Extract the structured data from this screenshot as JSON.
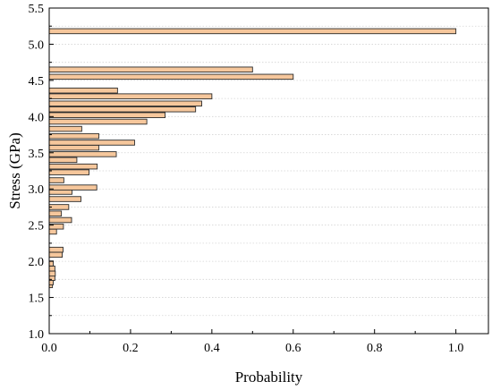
{
  "chart_data": {
    "type": "bar",
    "orientation": "horizontal",
    "xlabel": "Probability",
    "ylabel": "Stress (GPa)",
    "xlim": [
      0.0,
      1.08
    ],
    "ylim": [
      1.0,
      5.5
    ],
    "xticks": [
      "0.0",
      "0.2",
      "0.4",
      "0.6",
      "0.8",
      "1.0"
    ],
    "yticks": [
      "1.0",
      "1.5",
      "2.0",
      "2.5",
      "3.0",
      "3.5",
      "4.0",
      "4.5",
      "5.0",
      "5.5"
    ],
    "grid": "dotted horizontal",
    "bar_fill": "#f6c79c",
    "bar_edge": "#2b2b2b",
    "bins": [
      {
        "stress": 1.67,
        "probability": 0.008
      },
      {
        "stress": 1.71,
        "probability": 0.01
      },
      {
        "stress": 1.77,
        "probability": 0.014
      },
      {
        "stress": 1.83,
        "probability": 0.015
      },
      {
        "stress": 1.9,
        "probability": 0.014
      },
      {
        "stress": 1.97,
        "probability": 0.01
      },
      {
        "stress": 2.09,
        "probability": 0.032
      },
      {
        "stress": 2.16,
        "probability": 0.034
      },
      {
        "stress": 2.41,
        "probability": 0.018
      },
      {
        "stress": 2.48,
        "probability": 0.035
      },
      {
        "stress": 2.57,
        "probability": 0.055
      },
      {
        "stress": 2.66,
        "probability": 0.03
      },
      {
        "stress": 2.75,
        "probability": 0.048
      },
      {
        "stress": 2.86,
        "probability": 0.078
      },
      {
        "stress": 2.96,
        "probability": 0.056
      },
      {
        "stress": 3.02,
        "probability": 0.117
      },
      {
        "stress": 3.12,
        "probability": 0.036
      },
      {
        "stress": 3.23,
        "probability": 0.098
      },
      {
        "stress": 3.31,
        "probability": 0.118
      },
      {
        "stress": 3.4,
        "probability": 0.068
      },
      {
        "stress": 3.48,
        "probability": 0.165
      },
      {
        "stress": 3.57,
        "probability": 0.122
      },
      {
        "stress": 3.64,
        "probability": 0.21
      },
      {
        "stress": 3.73,
        "probability": 0.122
      },
      {
        "stress": 3.83,
        "probability": 0.08
      },
      {
        "stress": 3.93,
        "probability": 0.24
      },
      {
        "stress": 4.02,
        "probability": 0.285
      },
      {
        "stress": 4.1,
        "probability": 0.36
      },
      {
        "stress": 4.18,
        "probability": 0.375
      },
      {
        "stress": 4.28,
        "probability": 0.4
      },
      {
        "stress": 4.36,
        "probability": 0.168
      },
      {
        "stress": 4.55,
        "probability": 0.6
      },
      {
        "stress": 4.65,
        "probability": 0.5
      },
      {
        "stress": 5.18,
        "probability": 1.0
      }
    ]
  }
}
